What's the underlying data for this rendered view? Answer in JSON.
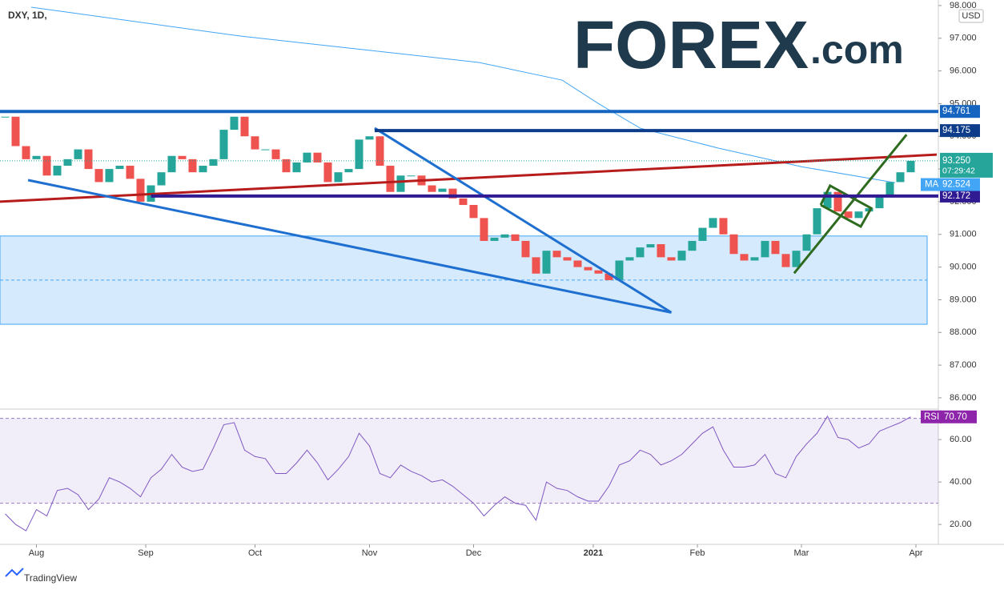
{
  "chart_data": {
    "type": "candlestick",
    "title": "DXY, 1D,",
    "currency": "USD",
    "xlim": [
      0,
      180
    ],
    "xticks": [
      {
        "value": 7,
        "label": "Aug"
      },
      {
        "value": 28,
        "label": "Sep"
      },
      {
        "value": 49,
        "label": "Oct"
      },
      {
        "value": 71,
        "label": "Nov"
      },
      {
        "value": 91,
        "label": "Dec"
      },
      {
        "value": 114,
        "label": "2021"
      },
      {
        "value": 134,
        "label": "Feb"
      },
      {
        "value": 154,
        "label": "Mar"
      },
      {
        "value": 176,
        "label": "Apr"
      }
    ],
    "ylim": [
      85.68,
      98.17
    ],
    "yticks": [
      {
        "value": 86,
        "label": "86.000"
      },
      {
        "value": 87,
        "label": "87.000"
      },
      {
        "value": 88,
        "label": "88.000"
      },
      {
        "value": 89,
        "label": "89.000"
      },
      {
        "value": 90,
        "label": "90.000"
      },
      {
        "value": 91,
        "label": "91.000"
      },
      {
        "value": 92,
        "label": "92.000"
      },
      {
        "value": 93,
        "label": "93.000"
      },
      {
        "value": 94,
        "label": "94.000"
      },
      {
        "value": 95,
        "label": "95.000"
      },
      {
        "value": 96,
        "label": "96.000"
      },
      {
        "value": 97,
        "label": "97.000"
      },
      {
        "value": 98,
        "label": "98.000"
      }
    ],
    "x": [
      1,
      3,
      5,
      7,
      9,
      11,
      13,
      15,
      17,
      19,
      21,
      23,
      25,
      27,
      29,
      31,
      33,
      35,
      37,
      39,
      41,
      43,
      45,
      47,
      49,
      51,
      53,
      55,
      57,
      59,
      61,
      63,
      65,
      67,
      69,
      71,
      73,
      75,
      77,
      79,
      81,
      83,
      85,
      87,
      89,
      91,
      93,
      95,
      97,
      99,
      101,
      103,
      105,
      107,
      109,
      111,
      113,
      115,
      117,
      119,
      121,
      123,
      125,
      127,
      129,
      131,
      133,
      135,
      137,
      139,
      141,
      143,
      145,
      147,
      149,
      151,
      153,
      155,
      157,
      159,
      161,
      163,
      165,
      167,
      169,
      171,
      173,
      175
    ],
    "series": [
      {
        "name": "DXY",
        "up_color": "#26a69a",
        "down_color": "#ef5350",
        "values": [
          94.6,
          93.7,
          93.3,
          93.4,
          92.8,
          93.1,
          93.3,
          93.6,
          93.0,
          92.6,
          93.0,
          93.1,
          92.7,
          92.0,
          92.5,
          92.9,
          93.4,
          93.3,
          92.9,
          93.1,
          93.3,
          94.2,
          94.6,
          94.0,
          93.6,
          93.6,
          93.3,
          92.9,
          93.2,
          93.5,
          93.2,
          92.6,
          92.9,
          93.0,
          93.9,
          94.0,
          93.1,
          92.3,
          92.8,
          92.8,
          92.5,
          92.3,
          92.4,
          92.1,
          91.9,
          91.5,
          90.8,
          90.9,
          91.0,
          90.8,
          90.3,
          89.8,
          90.5,
          90.3,
          90.2,
          90.0,
          89.9,
          89.8,
          89.6,
          90.2,
          90.3,
          90.6,
          90.7,
          90.3,
          90.2,
          90.5,
          90.8,
          91.2,
          91.5,
          91.0,
          90.4,
          90.2,
          90.3,
          90.8,
          90.4,
          90.0,
          90.5,
          91.0,
          91.8,
          92.3,
          91.7,
          91.5,
          91.7,
          91.8,
          92.2,
          92.6,
          92.9,
          93.25
        ]
      },
      {
        "name": "MA",
        "color": "#42a5f5",
        "x": [
          6,
          46,
          71,
          92,
          108,
          115,
          123,
          138,
          154,
          172
        ],
        "values": [
          97.95,
          97.07,
          96.63,
          96.26,
          95.72,
          95.0,
          94.25,
          93.64,
          93.07,
          92.58
        ],
        "last": 92.524
      }
    ],
    "last": {
      "value": 93.25,
      "label": "93.250",
      "countdown": "07:29:42"
    },
    "zone": {
      "low": 88.25,
      "high": 90.95,
      "mid": 89.6,
      "color": "#42a5f5"
    },
    "levels": [
      {
        "value": 94.761,
        "from": 0,
        "color": "#1565c0"
      },
      {
        "value": 94.175,
        "from": 72,
        "color": "#0d3c8a"
      },
      {
        "value": 92.172,
        "from": 29,
        "color": "#311b92"
      }
    ],
    "drawings": [
      {
        "x": [
          0,
          180
        ],
        "y": [
          92.0,
          93.44
        ],
        "color": "#b71c1c"
      },
      {
        "x": [
          5.4,
          129
        ],
        "y": [
          92.66,
          88.61
        ],
        "color": "#1e6fd0"
      },
      {
        "x": [
          72,
          129
        ],
        "y": [
          94.25,
          88.61
        ],
        "color": "#1e6fd0"
      },
      {
        "x": [
          152.6,
          174.2
        ],
        "y": [
          89.81,
          94.05
        ],
        "color": "#2e6b1f"
      },
      {
        "x": [
          157.7,
          159.5,
          167.4,
          165.4,
          157.7
        ],
        "y": [
          91.9,
          92.49,
          91.8,
          91.24,
          91.9
        ],
        "color": "#2e6b1f"
      }
    ],
    "rsi": {
      "name": "RSI",
      "color": "#7e57c2",
      "ylim": [
        10.6,
        74
      ],
      "yticks": [
        {
          "value": 20,
          "label": "20.00"
        },
        {
          "value": 40,
          "label": "40.00"
        },
        {
          "value": 60,
          "label": "60.00"
        }
      ],
      "band": [
        30,
        70
      ],
      "values": [
        25,
        20,
        17,
        27,
        24,
        36,
        37,
        34,
        27,
        32,
        42,
        40,
        37,
        33,
        42,
        46,
        53,
        47,
        45,
        46,
        56,
        67,
        68,
        55,
        52,
        51,
        44,
        44,
        49,
        55,
        49,
        41,
        46,
        52,
        63,
        57,
        44,
        42,
        48,
        45,
        43,
        40,
        41,
        38,
        34,
        30,
        24,
        29,
        33,
        30,
        29,
        22,
        40,
        37,
        36,
        33,
        31,
        31,
        38,
        48,
        50,
        55,
        53,
        48,
        50,
        53,
        58,
        63,
        66,
        55,
        47,
        47,
        48,
        53,
        44,
        42,
        52,
        58,
        63,
        71,
        61,
        60,
        56,
        58,
        64,
        66,
        68,
        70.7
      ],
      "last": {
        "value": 70.7,
        "label": "70.70"
      }
    }
  },
  "logo": {
    "main": "FOREX",
    "suffix": ".com"
  },
  "footer": "TradingView"
}
